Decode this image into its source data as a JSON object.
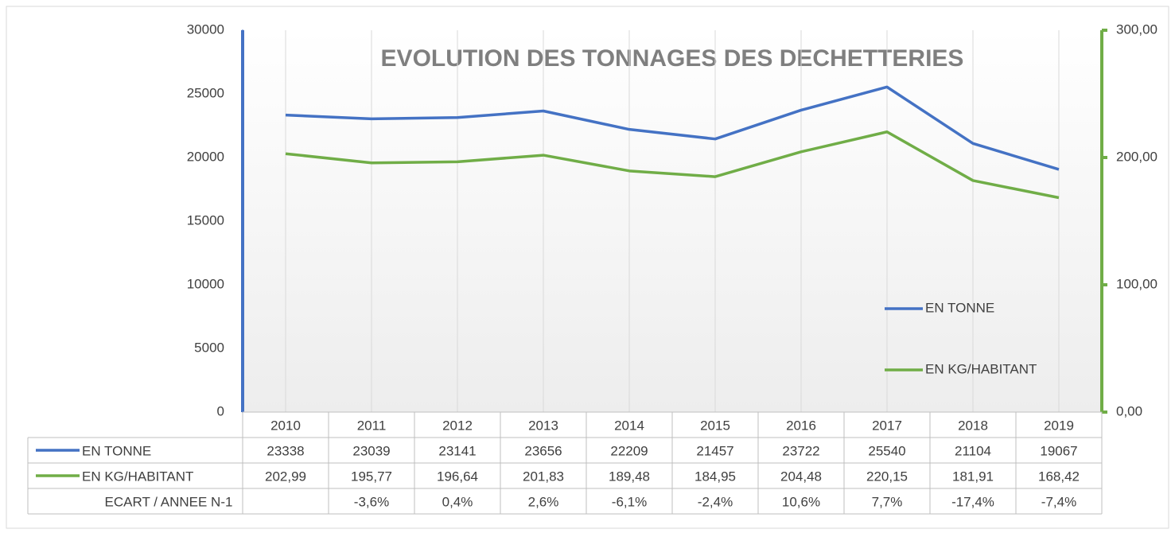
{
  "chart_data": {
    "type": "line",
    "title": "EVOLUTION DES TONNAGES DES DECHETTERIES",
    "categories": [
      "2010",
      "2011",
      "2012",
      "2013",
      "2014",
      "2015",
      "2016",
      "2017",
      "2018",
      "2019"
    ],
    "series": [
      {
        "name": "EN TONNE",
        "color": "#4472c4",
        "values": [
          23338,
          23039,
          23141,
          23656,
          22209,
          21457,
          23722,
          25540,
          21104,
          19067
        ]
      },
      {
        "name": "EN KG/HABITANT",
        "color": "#70ad47",
        "axis": "y2",
        "values": [
          202.99,
          195.77,
          196.64,
          201.83,
          189.48,
          184.95,
          204.48,
          220.15,
          181.91,
          168.42
        ],
        "value_labels": [
          "202,99",
          "195,77",
          "196,64",
          "201,83",
          "189,48",
          "184,95",
          "204,48",
          "220,15",
          "181,91",
          "168,42"
        ]
      }
    ],
    "table_rows": [
      {
        "name": "ECART / ANNEE N-1",
        "values": [
          null,
          -3.6,
          0.4,
          2.6,
          -6.1,
          -2.4,
          10.6,
          7.7,
          -17.4,
          -7.4
        ],
        "value_labels": [
          null,
          "-3,6%",
          "0,4%",
          "2,6%",
          "-6,1%",
          "-2,4%",
          "10,6%",
          "7,7%",
          "-17,4%",
          "-7,4%"
        ]
      }
    ],
    "ylim": [
      0,
      30000
    ],
    "yticks": [
      0,
      5000,
      10000,
      15000,
      20000,
      25000,
      30000
    ],
    "y2lim": [
      0,
      300
    ],
    "y2ticks": [
      {
        "value": 0,
        "label": "0,00"
      },
      {
        "value": 100,
        "label": "100,00"
      },
      {
        "value": 200,
        "label": "200,00"
      },
      {
        "value": 300,
        "label": "300,00"
      }
    ],
    "grid": true
  }
}
